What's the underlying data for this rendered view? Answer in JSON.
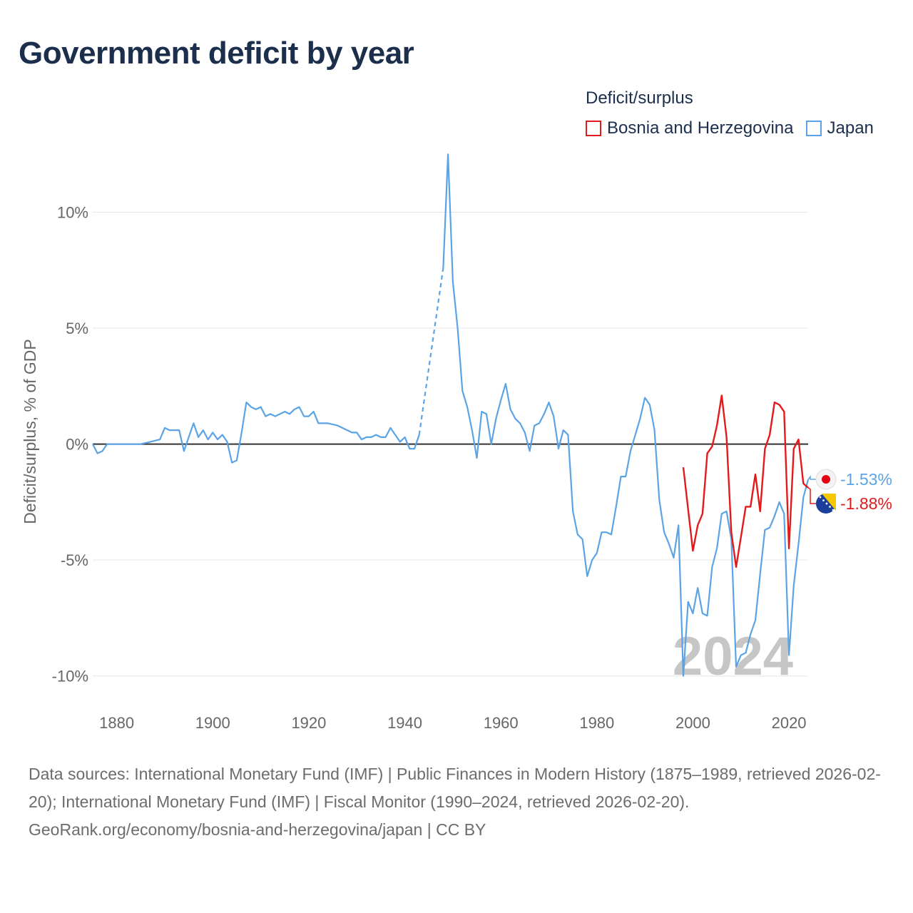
{
  "title": "Government deficit by year",
  "legend": {
    "title": "Deficit/surplus",
    "items": [
      {
        "label": "Bosnia and Herzegovina",
        "color": "#e31a1c"
      },
      {
        "label": "Japan",
        "color": "#5aa4e6"
      }
    ]
  },
  "footer": {
    "sources": "Data sources: International Monetary Fund (IMF) | Public Finances in Modern History (1875–1989, retrieved 2026-02-20); International Monetary Fund (IMF) | Fiscal Monitor (1990–2024, retrieved 2026-02-20).",
    "url": "GeoRank.org/economy/bosnia-and-herzegovina/japan | CC BY"
  },
  "chart_data": {
    "type": "line",
    "title": "Government deficit by year",
    "xlabel": "",
    "ylabel": "Deficit/surplus, % of GDP",
    "xlim": [
      1875,
      2024
    ],
    "ylim": [
      -11.3,
      13
    ],
    "x_ticks": [
      1880,
      1900,
      1920,
      1940,
      1960,
      1980,
      2000,
      2020
    ],
    "y_ticks": [
      10,
      5,
      0,
      -5,
      -10
    ],
    "y_tick_labels": [
      "10%",
      "5%",
      "0%",
      "-5%",
      "-10%"
    ],
    "grid": true,
    "year_watermark": "2024",
    "series": [
      {
        "name": "Japan",
        "color": "#5aa4e6",
        "end_label": "-1.53%",
        "dashed_gap": [
          1942,
          1949
        ],
        "points": [
          [
            1875,
            0.0
          ],
          [
            1876,
            -0.4
          ],
          [
            1877,
            -0.3
          ],
          [
            1878,
            0.0
          ],
          [
            1880,
            0.0
          ],
          [
            1883,
            0.0
          ],
          [
            1885,
            0.0
          ],
          [
            1887,
            0.1
          ],
          [
            1889,
            0.2
          ],
          [
            1890,
            0.7
          ],
          [
            1891,
            0.6
          ],
          [
            1893,
            0.6
          ],
          [
            1894,
            -0.3
          ],
          [
            1895,
            0.3
          ],
          [
            1896,
            0.9
          ],
          [
            1897,
            0.3
          ],
          [
            1898,
            0.6
          ],
          [
            1899,
            0.2
          ],
          [
            1900,
            0.5
          ],
          [
            1901,
            0.2
          ],
          [
            1902,
            0.4
          ],
          [
            1903,
            0.1
          ],
          [
            1904,
            -0.8
          ],
          [
            1905,
            -0.7
          ],
          [
            1906,
            0.5
          ],
          [
            1907,
            1.8
          ],
          [
            1908,
            1.6
          ],
          [
            1909,
            1.5
          ],
          [
            1910,
            1.6
          ],
          [
            1911,
            1.2
          ],
          [
            1912,
            1.3
          ],
          [
            1913,
            1.2
          ],
          [
            1914,
            1.3
          ],
          [
            1915,
            1.4
          ],
          [
            1916,
            1.3
          ],
          [
            1917,
            1.5
          ],
          [
            1918,
            1.6
          ],
          [
            1919,
            1.2
          ],
          [
            1920,
            1.2
          ],
          [
            1921,
            1.4
          ],
          [
            1922,
            0.9
          ],
          [
            1924,
            0.9
          ],
          [
            1926,
            0.8
          ],
          [
            1928,
            0.6
          ],
          [
            1929,
            0.5
          ],
          [
            1930,
            0.5
          ],
          [
            1931,
            0.2
          ],
          [
            1932,
            0.3
          ],
          [
            1933,
            0.3
          ],
          [
            1934,
            0.4
          ],
          [
            1935,
            0.3
          ],
          [
            1936,
            0.3
          ],
          [
            1937,
            0.7
          ],
          [
            1938,
            0.4
          ],
          [
            1939,
            0.1
          ],
          [
            1940,
            0.3
          ],
          [
            1941,
            -0.2
          ],
          [
            1942,
            -0.2
          ],
          [
            1943,
            0.4
          ],
          [
            1948,
            7.6
          ],
          [
            1949,
            12.5
          ],
          [
            1950,
            7.0
          ],
          [
            1951,
            5.0
          ],
          [
            1952,
            2.3
          ],
          [
            1953,
            1.6
          ],
          [
            1954,
            0.6
          ],
          [
            1955,
            -0.6
          ],
          [
            1956,
            1.4
          ],
          [
            1957,
            1.3
          ],
          [
            1958,
            0.0
          ],
          [
            1959,
            1.1
          ],
          [
            1960,
            1.9
          ],
          [
            1961,
            2.6
          ],
          [
            1962,
            1.5
          ],
          [
            1963,
            1.1
          ],
          [
            1964,
            0.9
          ],
          [
            1965,
            0.5
          ],
          [
            1966,
            -0.3
          ],
          [
            1967,
            0.8
          ],
          [
            1968,
            0.9
          ],
          [
            1969,
            1.3
          ],
          [
            1970,
            1.8
          ],
          [
            1971,
            1.2
          ],
          [
            1972,
            -0.2
          ],
          [
            1973,
            0.6
          ],
          [
            1974,
            0.4
          ],
          [
            1975,
            -2.9
          ],
          [
            1976,
            -3.9
          ],
          [
            1977,
            -4.1
          ],
          [
            1978,
            -5.7
          ],
          [
            1979,
            -5.0
          ],
          [
            1980,
            -4.7
          ],
          [
            1981,
            -3.8
          ],
          [
            1982,
            -3.8
          ],
          [
            1983,
            -3.9
          ],
          [
            1984,
            -2.7
          ],
          [
            1985,
            -1.4
          ],
          [
            1986,
            -1.4
          ],
          [
            1987,
            -0.3
          ],
          [
            1988,
            0.4
          ],
          [
            1989,
            1.1
          ],
          [
            1990,
            2.0
          ],
          [
            1991,
            1.7
          ],
          [
            1992,
            0.6
          ],
          [
            1993,
            -2.4
          ],
          [
            1994,
            -3.8
          ],
          [
            1995,
            -4.3
          ],
          [
            1996,
            -4.9
          ],
          [
            1997,
            -3.5
          ],
          [
            1998,
            -10.0
          ],
          [
            1999,
            -6.8
          ],
          [
            2000,
            -7.3
          ],
          [
            2001,
            -6.2
          ],
          [
            2002,
            -7.3
          ],
          [
            2003,
            -7.4
          ],
          [
            2004,
            -5.3
          ],
          [
            2005,
            -4.5
          ],
          [
            2006,
            -3.0
          ],
          [
            2007,
            -2.9
          ],
          [
            2008,
            -4.1
          ],
          [
            2009,
            -9.6
          ],
          [
            2010,
            -9.1
          ],
          [
            2011,
            -9.0
          ],
          [
            2012,
            -8.2
          ],
          [
            2013,
            -7.6
          ],
          [
            2014,
            -5.6
          ],
          [
            2015,
            -3.7
          ],
          [
            2016,
            -3.6
          ],
          [
            2017,
            -3.1
          ],
          [
            2018,
            -2.5
          ],
          [
            2019,
            -3.0
          ],
          [
            2020,
            -9.1
          ],
          [
            2021,
            -6.1
          ],
          [
            2022,
            -4.3
          ],
          [
            2023,
            -2.3
          ],
          [
            2024,
            -1.53
          ]
        ]
      },
      {
        "name": "Bosnia and Herzegovina",
        "color": "#e31a1c",
        "end_label": "-1.88%",
        "points": [
          [
            1998,
            -1.0
          ],
          [
            1999,
            -2.8
          ],
          [
            2000,
            -4.6
          ],
          [
            2001,
            -3.5
          ],
          [
            2002,
            -3.0
          ],
          [
            2003,
            -0.4
          ],
          [
            2004,
            -0.1
          ],
          [
            2005,
            0.8
          ],
          [
            2006,
            2.1
          ],
          [
            2007,
            0.3
          ],
          [
            2008,
            -3.8
          ],
          [
            2009,
            -5.3
          ],
          [
            2010,
            -4.0
          ],
          [
            2011,
            -2.7
          ],
          [
            2012,
            -2.7
          ],
          [
            2013,
            -1.3
          ],
          [
            2014,
            -2.9
          ],
          [
            2015,
            -0.2
          ],
          [
            2016,
            0.4
          ],
          [
            2017,
            1.8
          ],
          [
            2018,
            1.7
          ],
          [
            2019,
            1.4
          ],
          [
            2020,
            -4.5
          ],
          [
            2021,
            -0.2
          ],
          [
            2022,
            0.2
          ],
          [
            2023,
            -1.7
          ],
          [
            2024,
            -1.88
          ]
        ]
      }
    ]
  }
}
